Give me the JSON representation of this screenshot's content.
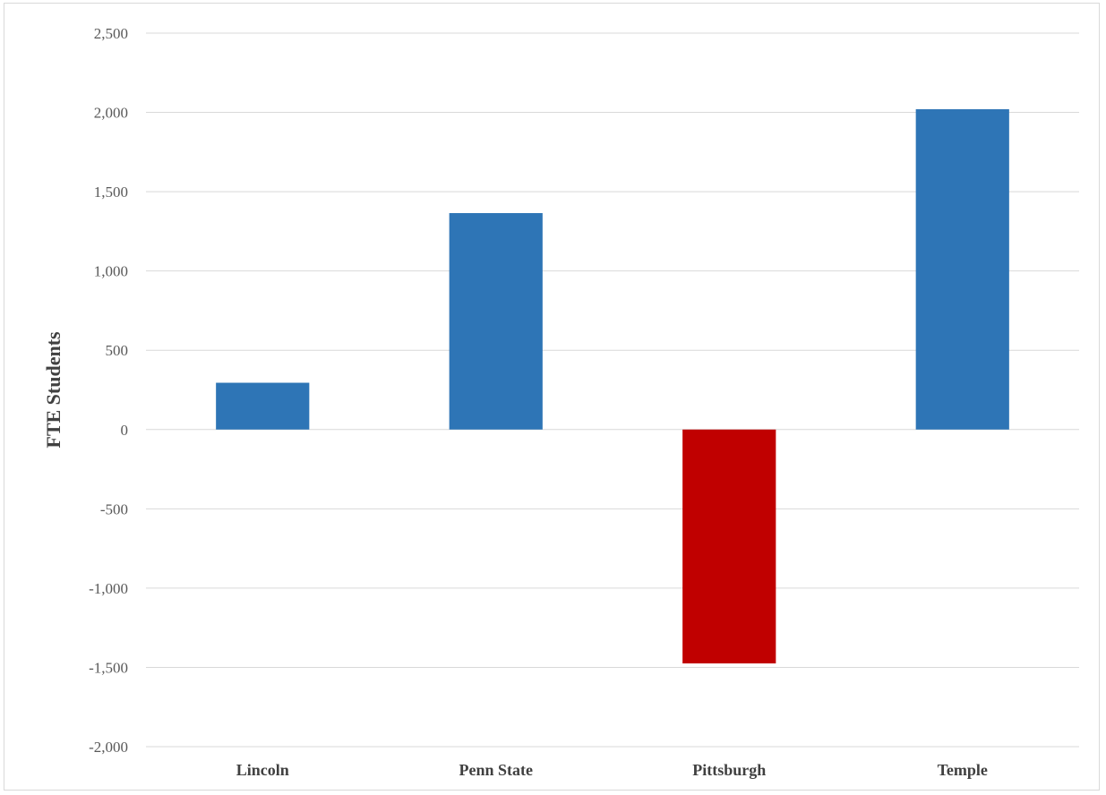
{
  "chart_data": {
    "type": "bar",
    "title": "",
    "xlabel": "",
    "ylabel": "FTE Students",
    "categories": [
      "Lincoln",
      "Penn State",
      "Pittsburgh",
      "Temple"
    ],
    "values": [
      295,
      1365,
      -1475,
      2020
    ],
    "ylim": [
      -2000,
      2500
    ],
    "yticks": [
      2500,
      2000,
      1500,
      1000,
      500,
      0,
      -500,
      -1000,
      -1500,
      -2000
    ],
    "ytick_labels": [
      "2,500",
      "2,000",
      "1,500",
      "1,000",
      "500",
      "0",
      "-500",
      "-1,000",
      "-1,500",
      "-2,000"
    ],
    "grid": true,
    "legend": "none",
    "colors": {
      "positive": "#2e75b6",
      "negative": "#c00000",
      "grid": "#d9d9d9"
    }
  }
}
